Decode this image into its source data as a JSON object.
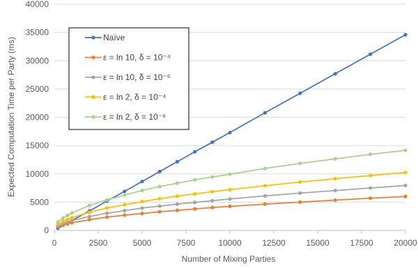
{
  "chart_data": {
    "type": "line",
    "xlabel": "Number of Mixing Parties",
    "ylabel": "Expected Computation Time per Party (ms)",
    "xlim": [
      0,
      20000
    ],
    "ylim": [
      0,
      40000
    ],
    "xticks": [
      "0",
      "2500",
      "5000",
      "7500",
      "10000",
      "12500",
      "15000",
      "17500",
      "20000"
    ],
    "yticks": [
      "0",
      "5000",
      "10000",
      "15000",
      "20000",
      "25000",
      "30000",
      "35000",
      "40000"
    ],
    "grid": "horizontal",
    "legend_position": "top-left",
    "x": [
      200,
      500,
      750,
      1000,
      2000,
      3000,
      4000,
      5000,
      6000,
      7000,
      8000,
      9000,
      10000,
      12000,
      14000,
      16000,
      18000,
      20000
    ],
    "series": [
      {
        "name": "Naïve",
        "color": "#4472C4",
        "values": [
          400,
          900,
          1300,
          1750,
          3450,
          5200,
          6900,
          8650,
          10400,
          12150,
          13900,
          15600,
          17300,
          20800,
          24250,
          27700,
          31150,
          34600
        ]
      },
      {
        "name": "ε = ln 10, δ = 10⁻⁴",
        "color": "#ED7D31",
        "values": [
          650,
          950,
          1150,
          1350,
          1900,
          2350,
          2700,
          3000,
          3300,
          3550,
          3800,
          4050,
          4250,
          4650,
          5000,
          5350,
          5700,
          6000
        ]
      },
      {
        "name": "ε = ln 10, δ = 10⁻⁶",
        "color": "#A5A5A5",
        "values": [
          850,
          1250,
          1500,
          1750,
          2450,
          3050,
          3500,
          3950,
          4300,
          4650,
          4950,
          5250,
          5550,
          6100,
          6600,
          7050,
          7500,
          7950
        ]
      },
      {
        "name": "ε = ln 2, δ = 10⁻⁴",
        "color": "#FFC000",
        "values": [
          1100,
          1600,
          1950,
          2250,
          3200,
          3950,
          4550,
          5100,
          5600,
          6050,
          6450,
          6850,
          7200,
          7900,
          8550,
          9150,
          9700,
          10250
        ]
      },
      {
        "name": "ε = ln 2, δ = 10⁻⁶",
        "color": "#A9D18E",
        "values": [
          1500,
          2200,
          2650,
          3100,
          4400,
          5400,
          6250,
          7050,
          7750,
          8350,
          8950,
          9450,
          9950,
          10950,
          11850,
          12650,
          13450,
          14150
        ]
      }
    ]
  }
}
